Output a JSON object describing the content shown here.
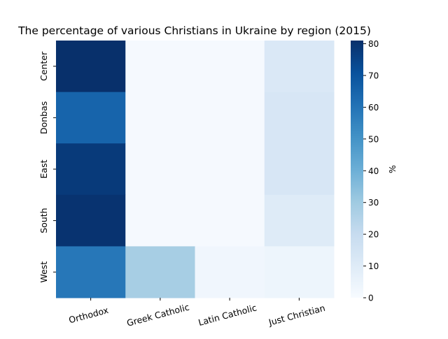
{
  "chart_data": {
    "type": "heatmap",
    "title": "The percentage of various Christians in Ukraine by region (2015)",
    "rows": [
      "Center",
      "Donbas",
      "East",
      "South",
      "West"
    ],
    "columns": [
      "Orthodox",
      "Greek Catholic",
      "Latin Catholic",
      "Just Christian"
    ],
    "values": [
      [
        81,
        1,
        1,
        12
      ],
      [
        65,
        1,
        1,
        13
      ],
      [
        78,
        1,
        1,
        13
      ],
      [
        80,
        1,
        1,
        10
      ],
      [
        59,
        28,
        3,
        4
      ]
    ],
    "colorbar": {
      "label": "%",
      "min": 0,
      "max": 81,
      "ticks": [
        0,
        10,
        20,
        30,
        40,
        50,
        60,
        70,
        80
      ]
    },
    "colormap": [
      "#f7fbff",
      "#deebf7",
      "#c6dbef",
      "#9ecae1",
      "#6baed6",
      "#4292c6",
      "#2171b5",
      "#08519c",
      "#08306b"
    ]
  }
}
